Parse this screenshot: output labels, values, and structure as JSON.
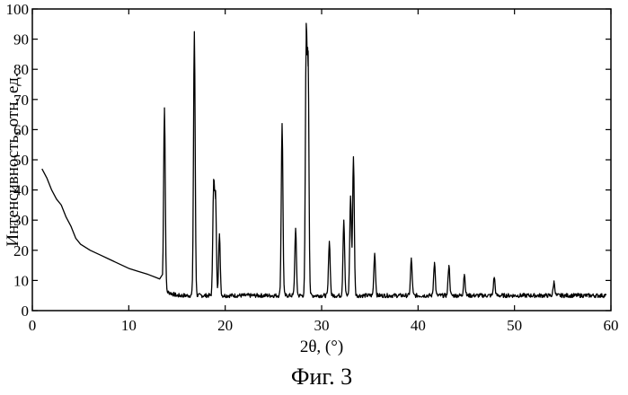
{
  "chart_data": {
    "type": "line",
    "title": "",
    "xlabel": "2θ, (°)",
    "ylabel": "Интенсивность, отн. ед.",
    "xlim": [
      0,
      60
    ],
    "ylim": [
      0,
      100
    ],
    "xticks": [
      0,
      10,
      20,
      30,
      40,
      50,
      60
    ],
    "yticks": [
      0,
      10,
      20,
      30,
      40,
      50,
      60,
      70,
      80,
      90,
      100
    ],
    "grid": false,
    "baseline": 5,
    "curve": [
      [
        1.0,
        47
      ],
      [
        1.5,
        44
      ],
      [
        2.0,
        40
      ],
      [
        2.5,
        37
      ],
      [
        3.0,
        35
      ],
      [
        3.5,
        31
      ],
      [
        4.0,
        28
      ],
      [
        4.5,
        24
      ],
      [
        5.0,
        22
      ],
      [
        5.5,
        21
      ],
      [
        6.0,
        20
      ],
      [
        7.0,
        18.5
      ],
      [
        8.0,
        17
      ],
      [
        9.0,
        15.5
      ],
      [
        10.0,
        14
      ],
      [
        11.0,
        13
      ],
      [
        12.0,
        12
      ],
      [
        12.8,
        11
      ],
      [
        13.2,
        10.5
      ],
      [
        13.5,
        12
      ]
    ],
    "peaks": [
      {
        "x": 13.7,
        "y": 66
      },
      {
        "x": 16.8,
        "y": 92
      },
      {
        "x": 18.8,
        "y": 42
      },
      {
        "x": 19.0,
        "y": 37
      },
      {
        "x": 19.4,
        "y": 25
      },
      {
        "x": 25.9,
        "y": 62
      },
      {
        "x": 27.3,
        "y": 27
      },
      {
        "x": 28.4,
        "y": 90
      },
      {
        "x": 28.6,
        "y": 81
      },
      {
        "x": 30.8,
        "y": 23
      },
      {
        "x": 32.3,
        "y": 30
      },
      {
        "x": 33.0,
        "y": 38
      },
      {
        "x": 33.3,
        "y": 51
      },
      {
        "x": 35.5,
        "y": 19
      },
      {
        "x": 39.3,
        "y": 17
      },
      {
        "x": 41.7,
        "y": 16
      },
      {
        "x": 43.2,
        "y": 15
      },
      {
        "x": 44.8,
        "y": 12
      },
      {
        "x": 47.9,
        "y": 11
      },
      {
        "x": 54.1,
        "y": 9.5
      }
    ]
  },
  "caption": "Фиг. 3"
}
